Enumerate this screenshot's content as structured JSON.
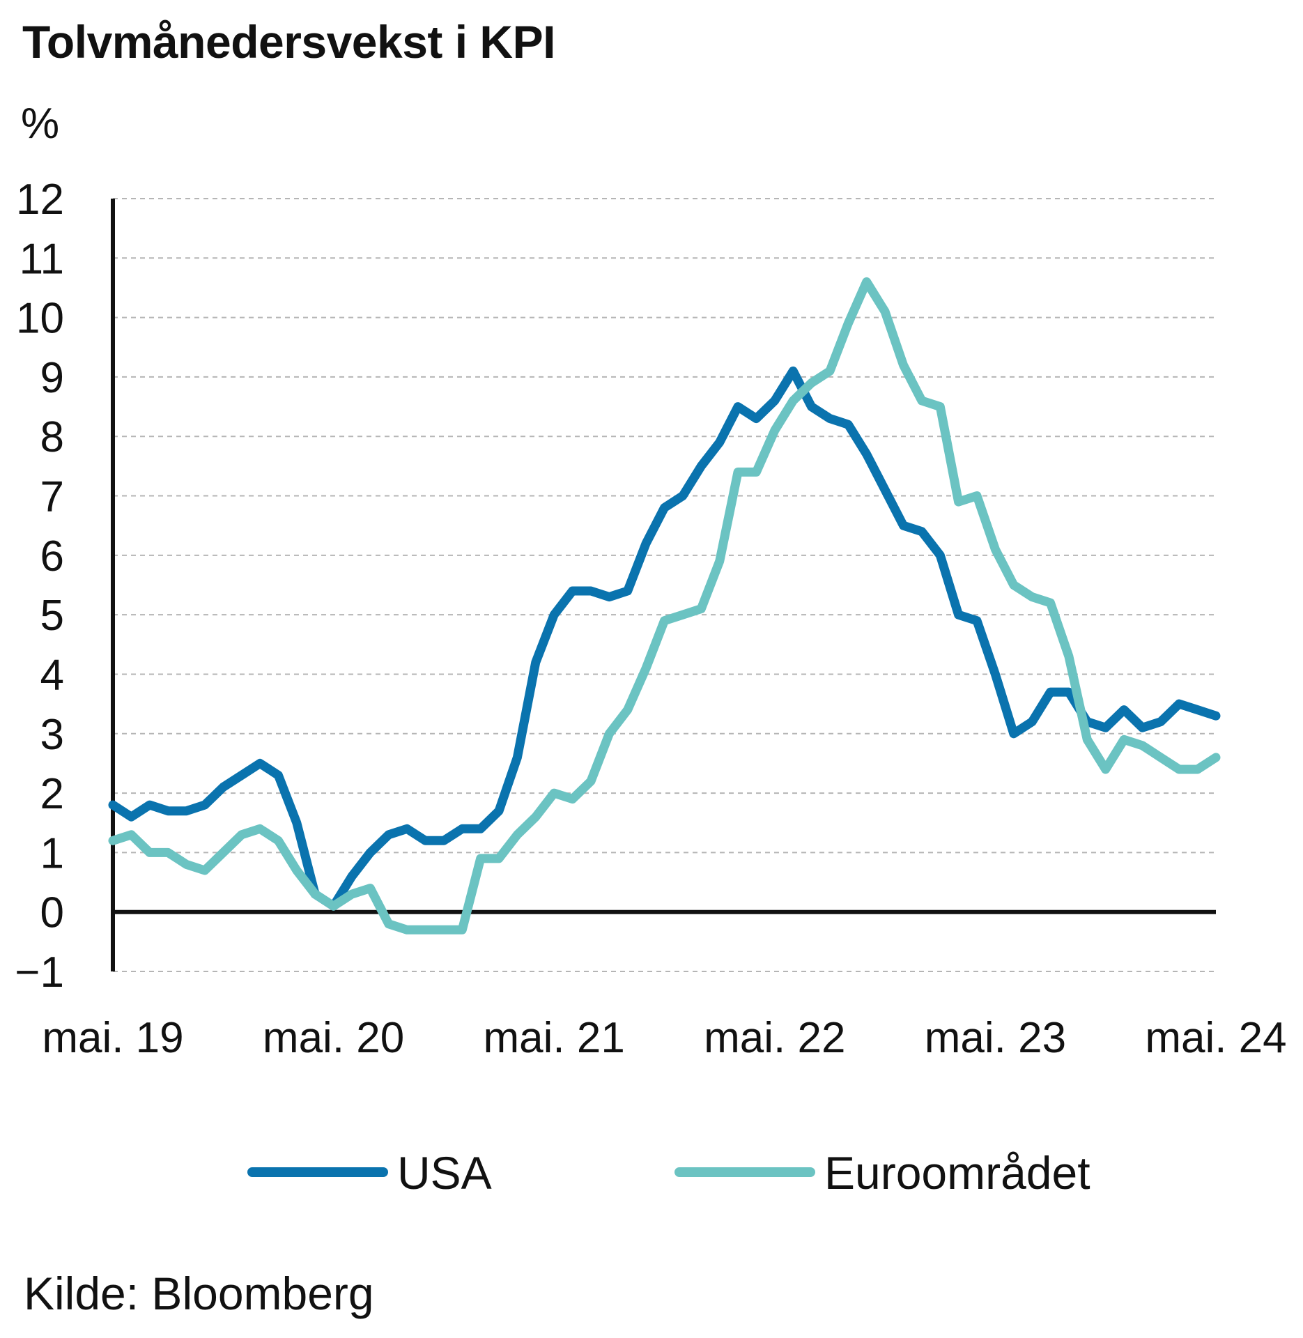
{
  "title": "Tolvmånedersvekst i KPI",
  "unit": "%",
  "source": "Kilde: Bloomberg",
  "chart_data": {
    "type": "line",
    "title": "Tolvmånedersvekst i KPI",
    "ylabel": "%",
    "xlabel": "",
    "ylim": [
      -1,
      12
    ],
    "yticks": [
      -1,
      0,
      1,
      2,
      3,
      4,
      5,
      6,
      7,
      8,
      9,
      10,
      11,
      12
    ],
    "x_tick_labels": [
      "mai. 19",
      "mai. 20",
      "mai. 21",
      "mai. 22",
      "mai. 23",
      "mai. 24"
    ],
    "grid": "horizontal dashed",
    "legend_position": "bottom",
    "x": [
      "2019-05",
      "2019-06",
      "2019-07",
      "2019-08",
      "2019-09",
      "2019-10",
      "2019-11",
      "2019-12",
      "2020-01",
      "2020-02",
      "2020-03",
      "2020-04",
      "2020-05",
      "2020-06",
      "2020-07",
      "2020-08",
      "2020-09",
      "2020-10",
      "2020-11",
      "2020-12",
      "2021-01",
      "2021-02",
      "2021-03",
      "2021-04",
      "2021-05",
      "2021-06",
      "2021-07",
      "2021-08",
      "2021-09",
      "2021-10",
      "2021-11",
      "2021-12",
      "2022-01",
      "2022-02",
      "2022-03",
      "2022-04",
      "2022-05",
      "2022-06",
      "2022-07",
      "2022-08",
      "2022-09",
      "2022-10",
      "2022-11",
      "2022-12",
      "2023-01",
      "2023-02",
      "2023-03",
      "2023-04",
      "2023-05",
      "2023-06",
      "2023-07",
      "2023-08",
      "2023-09",
      "2023-10",
      "2023-11",
      "2023-12",
      "2024-01",
      "2024-02",
      "2024-03",
      "2024-04",
      "2024-05"
    ],
    "series": [
      {
        "name": "USA",
        "color": "#0a73ae",
        "values": [
          1.8,
          1.6,
          1.8,
          1.7,
          1.7,
          1.8,
          2.1,
          2.3,
          2.5,
          2.3,
          1.5,
          0.3,
          0.1,
          0.6,
          1.0,
          1.3,
          1.4,
          1.2,
          1.2,
          1.4,
          1.4,
          1.7,
          2.6,
          4.2,
          5.0,
          5.4,
          5.4,
          5.3,
          5.4,
          6.2,
          6.8,
          7.0,
          7.5,
          7.9,
          8.5,
          8.3,
          8.6,
          9.1,
          8.5,
          8.3,
          8.2,
          7.7,
          7.1,
          6.5,
          6.4,
          6.0,
          5.0,
          4.9,
          4.0,
          3.0,
          3.2,
          3.7,
          3.7,
          3.2,
          3.1,
          3.4,
          3.1,
          3.2,
          3.5,
          3.4,
          3.3
        ]
      },
      {
        "name": "Euroområdet",
        "color": "#6bc3c2",
        "values": [
          1.2,
          1.3,
          1.0,
          1.0,
          0.8,
          0.7,
          1.0,
          1.3,
          1.4,
          1.2,
          0.7,
          0.3,
          0.1,
          0.3,
          0.4,
          -0.2,
          -0.3,
          -0.3,
          -0.3,
          -0.3,
          0.9,
          0.9,
          1.3,
          1.6,
          2.0,
          1.9,
          2.2,
          3.0,
          3.4,
          4.1,
          4.9,
          5.0,
          5.1,
          5.9,
          7.4,
          7.4,
          8.1,
          8.6,
          8.9,
          9.1,
          9.9,
          10.6,
          10.1,
          9.2,
          8.6,
          8.5,
          6.9,
          7.0,
          6.1,
          5.5,
          5.3,
          5.2,
          4.3,
          2.9,
          2.4,
          2.9,
          2.8,
          2.6,
          2.4,
          2.4,
          2.6
        ]
      }
    ]
  }
}
